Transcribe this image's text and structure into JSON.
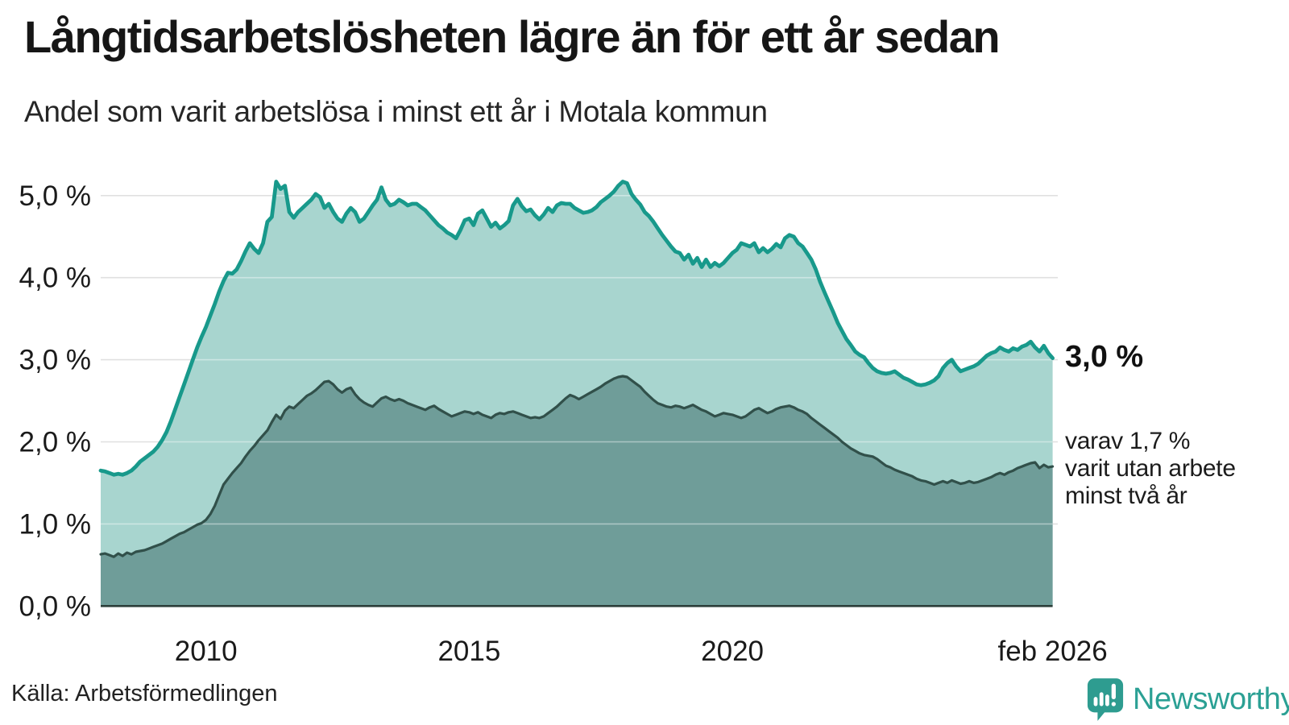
{
  "header": {
    "title": "Långtidsarbetslösheten lägre än för ett år sedan",
    "subtitle": "Andel som varit arbetslösa i minst ett år i Motala kommun"
  },
  "annotations": {
    "latest_total": "3,0 %",
    "two_year_line1": "varav 1,7 %",
    "two_year_line2": "varit utan arbete",
    "two_year_line3": "minst två år"
  },
  "source": "Källa: Arbetsförmedlingen",
  "brand": {
    "name": "Newsworthy",
    "color": "#2ba094"
  },
  "chart_data": {
    "type": "area",
    "title": "Långtidsarbetslösheten lägre än för ett år sedan",
    "subtitle": "Andel som varit arbetslösa i minst ett år i Motala kommun",
    "x_unit": "month",
    "x_start": "2008-01",
    "x_end": "2026-02",
    "ylim": [
      0,
      5.3
    ],
    "grid": "horizontal",
    "legend": "none",
    "y_ticks": [
      {
        "value": 0,
        "label": "0,0 %"
      },
      {
        "value": 1,
        "label": "1,0 %"
      },
      {
        "value": 2,
        "label": "2,0 %"
      },
      {
        "value": 3,
        "label": "3,0 %"
      },
      {
        "value": 4,
        "label": "4,0 %"
      },
      {
        "value": 5,
        "label": "5,0 %"
      }
    ],
    "x_ticks": [
      {
        "index": 24,
        "label": "2010"
      },
      {
        "index": 84,
        "label": "2015"
      },
      {
        "index": 144,
        "label": "2020"
      },
      {
        "index": 217,
        "label": "feb 2026"
      }
    ],
    "series": [
      {
        "name": "Andel arbetslösa minst ett år",
        "color": "#18998b",
        "fill": "#a8d5cf",
        "latest_value": 3.0,
        "values": [
          1.65,
          1.64,
          1.62,
          1.6,
          1.61,
          1.6,
          1.62,
          1.65,
          1.7,
          1.76,
          1.8,
          1.84,
          1.88,
          1.94,
          2.02,
          2.12,
          2.25,
          2.4,
          2.55,
          2.7,
          2.85,
          3.0,
          3.15,
          3.28,
          3.4,
          3.54,
          3.68,
          3.83,
          3.96,
          4.06,
          4.05,
          4.1,
          4.2,
          4.32,
          4.42,
          4.35,
          4.3,
          4.42,
          4.68,
          4.74,
          5.17,
          5.08,
          5.12,
          4.8,
          4.73,
          4.8,
          4.85,
          4.9,
          4.95,
          5.02,
          4.98,
          4.85,
          4.9,
          4.8,
          4.72,
          4.68,
          4.78,
          4.85,
          4.8,
          4.68,
          4.72,
          4.8,
          4.88,
          4.95,
          5.1,
          4.95,
          4.88,
          4.9,
          4.95,
          4.92,
          4.88,
          4.9,
          4.9,
          4.86,
          4.82,
          4.76,
          4.7,
          4.64,
          4.6,
          4.55,
          4.52,
          4.48,
          4.58,
          4.7,
          4.72,
          4.64,
          4.78,
          4.82,
          4.72,
          4.62,
          4.67,
          4.6,
          4.64,
          4.69,
          4.88,
          4.96,
          4.87,
          4.81,
          4.83,
          4.76,
          4.71,
          4.77,
          4.85,
          4.8,
          4.88,
          4.91,
          4.9,
          4.9,
          4.85,
          4.82,
          4.79,
          4.8,
          4.82,
          4.86,
          4.92,
          4.96,
          5.0,
          5.05,
          5.12,
          5.17,
          5.15,
          5.02,
          4.95,
          4.89,
          4.8,
          4.75,
          4.68,
          4.6,
          4.52,
          4.45,
          4.38,
          4.32,
          4.3,
          4.22,
          4.28,
          4.17,
          4.24,
          4.13,
          4.22,
          4.13,
          4.18,
          4.14,
          4.18,
          4.24,
          4.3,
          4.34,
          4.42,
          4.4,
          4.38,
          4.42,
          4.31,
          4.36,
          4.31,
          4.35,
          4.41,
          4.37,
          4.48,
          4.52,
          4.5,
          4.42,
          4.38,
          4.3,
          4.22,
          4.1,
          3.95,
          3.82,
          3.7,
          3.58,
          3.45,
          3.35,
          3.25,
          3.18,
          3.1,
          3.06,
          3.03,
          2.96,
          2.9,
          2.86,
          2.84,
          2.83,
          2.84,
          2.86,
          2.82,
          2.78,
          2.76,
          2.73,
          2.7,
          2.69,
          2.7,
          2.72,
          2.75,
          2.8,
          2.9,
          2.96,
          3.0,
          2.92,
          2.86,
          2.88,
          2.9,
          2.92,
          2.95,
          3.0,
          3.05,
          3.08,
          3.1,
          3.15,
          3.12,
          3.1,
          3.14,
          3.12,
          3.16,
          3.18,
          3.22,
          3.15,
          3.1,
          3.17,
          3.08,
          3.02
        ]
      },
      {
        "name": "varav utan arbete minst två år",
        "color": "#31504a",
        "fill": "#6f9d99",
        "latest_value": 1.7,
        "values": [
          0.63,
          0.64,
          0.62,
          0.6,
          0.64,
          0.61,
          0.65,
          0.63,
          0.66,
          0.67,
          0.68,
          0.7,
          0.72,
          0.74,
          0.76,
          0.79,
          0.82,
          0.85,
          0.88,
          0.9,
          0.93,
          0.96,
          0.99,
          1.01,
          1.05,
          1.12,
          1.22,
          1.35,
          1.48,
          1.55,
          1.62,
          1.68,
          1.74,
          1.82,
          1.89,
          1.95,
          2.02,
          2.08,
          2.14,
          2.24,
          2.33,
          2.28,
          2.38,
          2.43,
          2.41,
          2.46,
          2.51,
          2.56,
          2.59,
          2.63,
          2.68,
          2.73,
          2.74,
          2.7,
          2.64,
          2.6,
          2.64,
          2.66,
          2.58,
          2.52,
          2.48,
          2.45,
          2.43,
          2.48,
          2.53,
          2.55,
          2.52,
          2.5,
          2.52,
          2.5,
          2.47,
          2.45,
          2.43,
          2.41,
          2.39,
          2.42,
          2.44,
          2.4,
          2.37,
          2.34,
          2.31,
          2.33,
          2.35,
          2.37,
          2.36,
          2.34,
          2.36,
          2.33,
          2.31,
          2.29,
          2.33,
          2.35,
          2.34,
          2.36,
          2.37,
          2.35,
          2.33,
          2.31,
          2.29,
          2.3,
          2.29,
          2.31,
          2.35,
          2.39,
          2.43,
          2.48,
          2.53,
          2.57,
          2.55,
          2.52,
          2.55,
          2.58,
          2.61,
          2.64,
          2.67,
          2.71,
          2.74,
          2.77,
          2.79,
          2.8,
          2.79,
          2.75,
          2.71,
          2.67,
          2.61,
          2.56,
          2.51,
          2.47,
          2.45,
          2.43,
          2.42,
          2.44,
          2.43,
          2.41,
          2.43,
          2.45,
          2.42,
          2.39,
          2.37,
          2.34,
          2.31,
          2.33,
          2.35,
          2.34,
          2.33,
          2.31,
          2.29,
          2.31,
          2.35,
          2.39,
          2.41,
          2.38,
          2.35,
          2.37,
          2.4,
          2.42,
          2.43,
          2.44,
          2.42,
          2.39,
          2.37,
          2.34,
          2.29,
          2.25,
          2.21,
          2.17,
          2.13,
          2.09,
          2.05,
          2.0,
          1.96,
          1.92,
          1.89,
          1.86,
          1.84,
          1.83,
          1.82,
          1.79,
          1.75,
          1.71,
          1.69,
          1.66,
          1.64,
          1.62,
          1.6,
          1.58,
          1.55,
          1.53,
          1.52,
          1.5,
          1.48,
          1.5,
          1.52,
          1.5,
          1.53,
          1.51,
          1.49,
          1.5,
          1.52,
          1.5,
          1.51,
          1.53,
          1.55,
          1.57,
          1.6,
          1.62,
          1.6,
          1.63,
          1.65,
          1.68,
          1.7,
          1.72,
          1.74,
          1.75,
          1.68,
          1.72,
          1.69,
          1.7
        ]
      }
    ]
  }
}
